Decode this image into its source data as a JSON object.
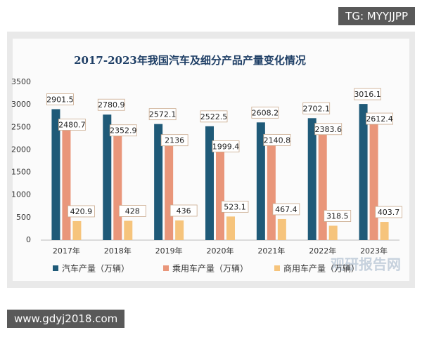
{
  "chart_data": {
    "type": "bar",
    "title": "2017-2023年我国汽车及细分产品产量变化情况",
    "categories": [
      "2017年",
      "2018年",
      "2019年",
      "2020年",
      "2021年",
      "2022年",
      "2023年"
    ],
    "series": [
      {
        "name": "汽车产量（万辆）",
        "color": "#1f5a78",
        "values": [
          2901.5,
          2780.9,
          2572.1,
          2522.5,
          2608.2,
          2702.1,
          3016.1
        ]
      },
      {
        "name": "乘用车产量（万辆）",
        "color": "#e9967a",
        "values": [
          2480.7,
          2352.9,
          2136,
          1999.4,
          2140.8,
          2383.6,
          2612.4
        ]
      },
      {
        "name": "商用车产量（万辆）",
        "color": "#f6c47c",
        "values": [
          420.9,
          428,
          436,
          523.1,
          467.4,
          318.5,
          403.7
        ]
      }
    ],
    "ylim": [
      0,
      3500
    ],
    "yticks": [
      0,
      500,
      1000,
      1500,
      2000,
      2500,
      3000,
      3500
    ],
    "grid": false,
    "legend": "bottom",
    "watermark": "观研报告网",
    "overlay_top": "TG: MYYJJPP",
    "overlay_bottom": "www.gdyj2018.com"
  }
}
